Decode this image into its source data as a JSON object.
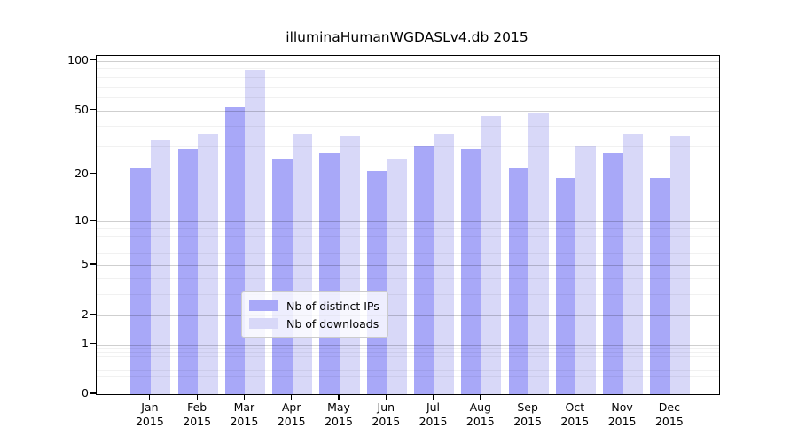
{
  "chart_data": {
    "type": "bar",
    "title": "illuminaHumanWGDASLv4.db 2015",
    "year_label": "2015",
    "categories": [
      "Jan",
      "Feb",
      "Mar",
      "Apr",
      "May",
      "Jun",
      "Jul",
      "Aug",
      "Sep",
      "Oct",
      "Nov",
      "Dec"
    ],
    "series": [
      {
        "name": "Nb of distinct IPs",
        "color": "#a8a8f8",
        "values": [
          22,
          29,
          52,
          25,
          27,
          21,
          30,
          29,
          22,
          19,
          27,
          19
        ]
      },
      {
        "name": "Nb of downloads",
        "color": "#d8d8f8",
        "values": [
          33,
          36,
          88,
          36,
          35,
          25,
          36,
          46,
          48,
          30,
          36,
          35
        ]
      }
    ],
    "y_axis": {
      "scale": "log1p",
      "range": [
        0,
        100
      ],
      "major_ticks": [
        0,
        1,
        2,
        5,
        10,
        20,
        50,
        100
      ],
      "minor_gridlines": [
        0.3,
        0.4,
        0.6,
        0.7,
        0.8,
        0.9,
        3,
        4,
        6,
        7,
        8,
        9,
        30,
        40,
        60,
        70,
        80,
        90
      ],
      "grid": "on"
    },
    "legend": {
      "position": "inside-bottom-center"
    },
    "colors": {
      "axis": "#000000",
      "major_grid": "#cccccc",
      "minor_grid": "#f1f1f1",
      "legend_border": "#cccccc",
      "legend_background": "rgba(255,255,255,0.8)",
      "background": "#ffffff"
    }
  }
}
